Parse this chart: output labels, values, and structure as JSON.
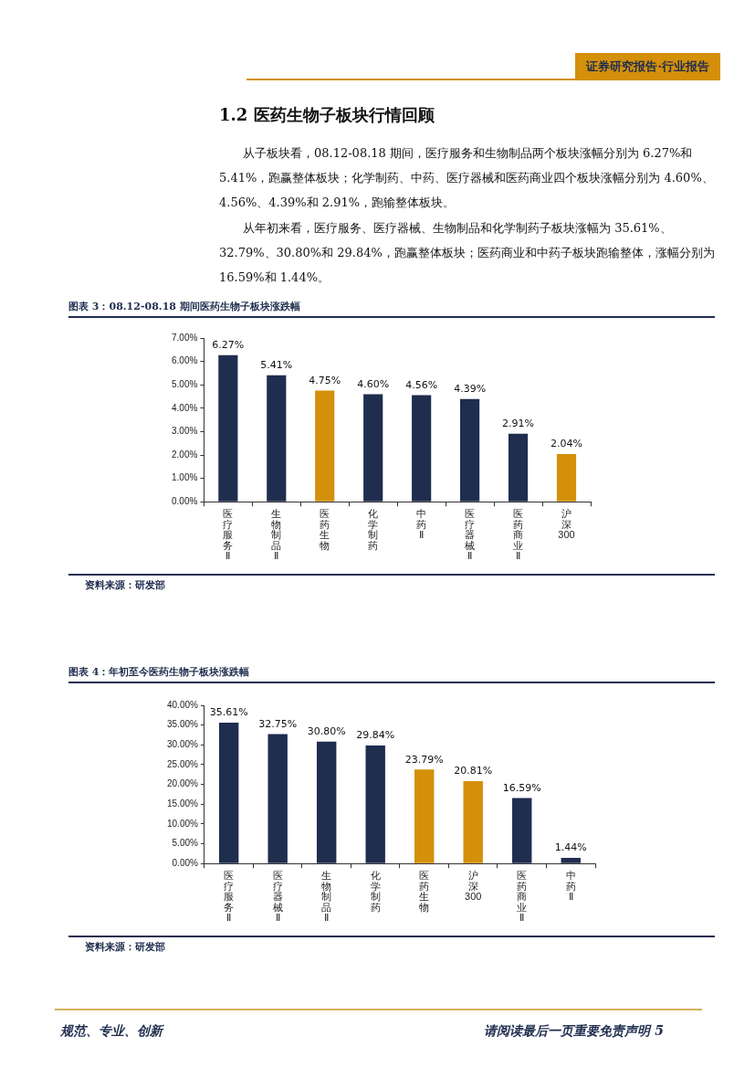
{
  "chart_data": [
    {
      "type": "bar",
      "title": "图表 3：08.12-08.18 期间医药生物子板块涨跌幅",
      "categories": [
        "医疗服务Ⅱ",
        "生物制品Ⅱ",
        "医药生物",
        "化学制药",
        "中药Ⅱ",
        "医疗器械Ⅱ",
        "医药商业Ⅱ",
        "沪深300"
      ],
      "values": [
        6.27,
        5.41,
        4.75,
        4.6,
        4.56,
        4.39,
        2.91,
        2.04
      ],
      "colors": [
        "#1f2d4e",
        "#1f2d4e",
        "#d4900a",
        "#1f2d4e",
        "#1f2d4e",
        "#1f2d4e",
        "#1f2d4e",
        "#d4900a"
      ],
      "value_labels": [
        "6.27%",
        "5.41%",
        "4.75%",
        "4.60%",
        "4.56%",
        "4.39%",
        "2.91%",
        "2.04%"
      ],
      "ylim": [
        0,
        7
      ],
      "yticks": [
        {
          "value": 0,
          "label": "0.00%"
        },
        {
          "value": 1,
          "label": "1.00%"
        },
        {
          "value": 2,
          "label": "2.00%"
        },
        {
          "value": 3,
          "label": "3.00%"
        },
        {
          "value": 4,
          "label": "4.00%"
        },
        {
          "value": 5,
          "label": "5.00%"
        },
        {
          "value": 6,
          "label": "6.00%"
        },
        {
          "value": 7,
          "label": "7.00%"
        }
      ],
      "grid": false,
      "annotations": [
        "证券研究报告·行业报告",
        "1.2 医药生物子板块行情回顾",
        "从子板块看，08.12-08.18 期间，医疗服务和生物制品两个板块涨幅分别为 6.27%和 5.41%，跑赢整体板块；化学制药、中药、医疗器械和医药商业四个板块涨幅分别为 4.60%、4.56%、4.39%和 2.91%，跑输整体板块。",
        "从年初来看，医疗服务、医疗器械、生物制品和化学制药子板块涨幅为 35.61%、32.79%、30.80%和 29.84%，跑赢整体板块；医药商业和中药子板块跑输整体，涨幅分别为 16.59%和 1.44%。",
        "资料来源：研发部"
      ]
    },
    {
      "type": "bar",
      "title": "图表 4：年初至今医药生物子板块涨跌幅",
      "categories": [
        "医疗服务Ⅱ",
        "医疗器械Ⅱ",
        "生物制品Ⅱ",
        "化学制药",
        "医药生物",
        "沪深300",
        "医药商业Ⅱ",
        "中药Ⅱ"
      ],
      "values": [
        35.61,
        32.75,
        30.8,
        29.84,
        23.79,
        20.81,
        16.59,
        1.44
      ],
      "colors": [
        "#1f2d4e",
        "#1f2d4e",
        "#1f2d4e",
        "#1f2d4e",
        "#d4900a",
        "#d4900a",
        "#1f2d4e",
        "#1f2d4e"
      ],
      "value_labels": [
        "35.61%",
        "32.75%",
        "30.80%",
        "29.84%",
        "23.79%",
        "20.81%",
        "16.59%",
        "1.44%"
      ],
      "ylim": [
        0,
        40
      ],
      "yticks": [
        {
          "value": 0,
          "label": "0.00%"
        },
        {
          "value": 5,
          "label": "5.00%"
        },
        {
          "value": 10,
          "label": "10.00%"
        },
        {
          "value": 15,
          "label": "15.00%"
        },
        {
          "value": 20,
          "label": "20.00%"
        },
        {
          "value": 25,
          "label": "25.00%"
        },
        {
          "value": 30,
          "label": "30.00%"
        },
        {
          "value": 35,
          "label": "35.00%"
        },
        {
          "value": 40,
          "label": "40.00%"
        }
      ],
      "grid": false,
      "annotations": [
        "资料来源：研发部",
        "规范、专业、创新",
        "请阅读最后一页重要免责声明 5"
      ]
    }
  ]
}
